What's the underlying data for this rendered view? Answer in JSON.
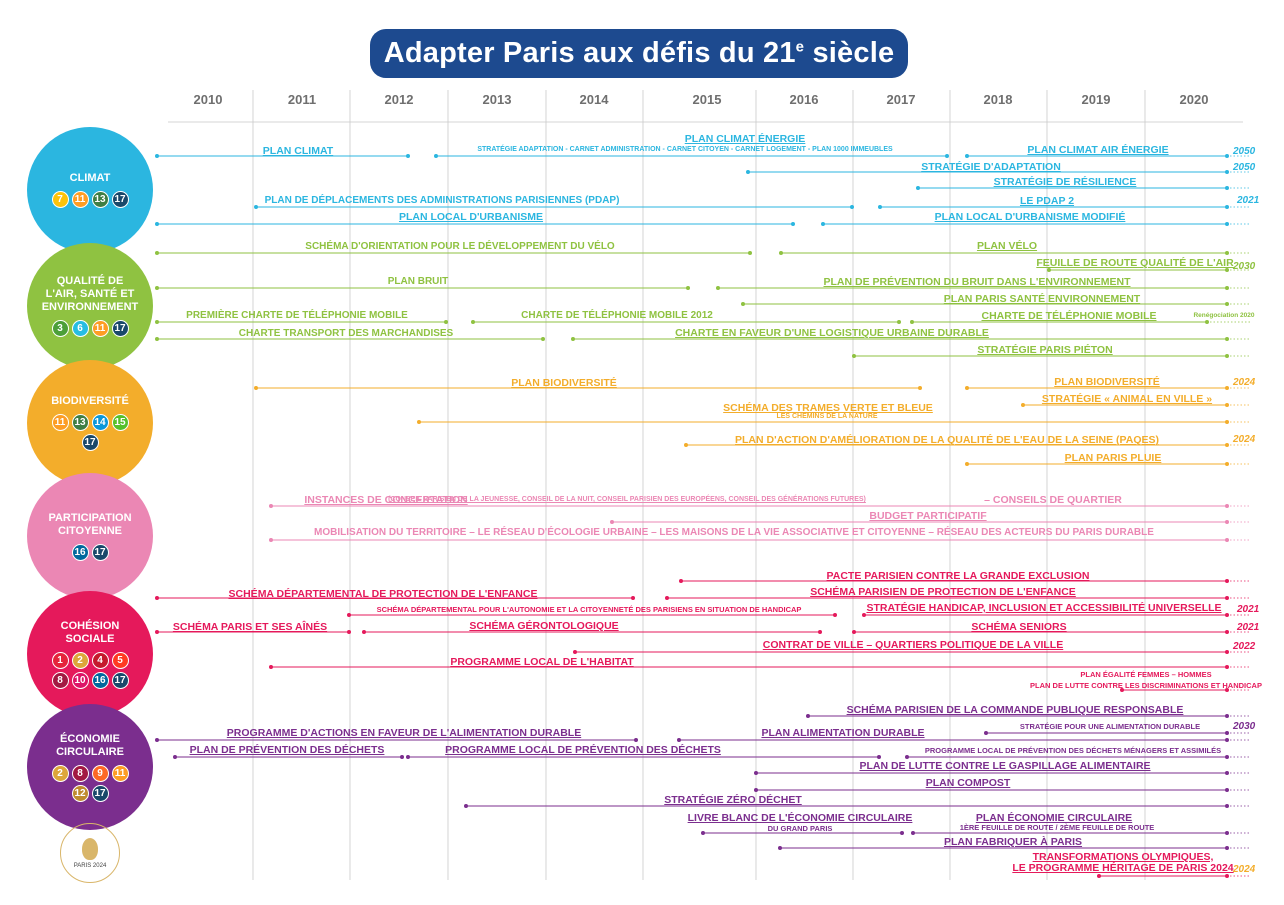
{
  "title": "Adapter Paris aux  défis du 21ᵉ siècle",
  "years": [
    "2010",
    "2011",
    "2012",
    "2013",
    "2014",
    "2015",
    "2016",
    "2017",
    "2018",
    "2019",
    "2020"
  ],
  "logo_text": "PARIS 2024",
  "colors": {
    "climat": "#2bb6e0",
    "air": "#8fc241",
    "bio": "#f3ad2b",
    "part": "#eb87b4",
    "coh": "#e5195b",
    "eco": "#7b2e8e",
    "navy": "#1d4a8f"
  },
  "categories": [
    {
      "id": "climat",
      "name": "CLIMAT",
      "badges": [
        "7",
        "11",
        "13",
        "17"
      ]
    },
    {
      "id": "air",
      "name": "QUALITÉ DE L'AIR, SANTÉ ET ENVIRONNEMENT",
      "badges": [
        "3",
        "6",
        "11",
        "17"
      ]
    },
    {
      "id": "bio",
      "name": "BIODIVERSITÉ",
      "badges": [
        "11",
        "13",
        "14",
        "15",
        "17"
      ]
    },
    {
      "id": "part",
      "name": "PARTICIPATION CITOYENNE",
      "badges": [
        "16",
        "17"
      ]
    },
    {
      "id": "coh",
      "name": "COHÉSION SOCIALE",
      "badges": [
        "1",
        "2",
        "4",
        "5",
        "8",
        "10",
        "16",
        "17"
      ]
    },
    {
      "id": "eco",
      "name": "ÉCONOMIE CIRCULAIRE",
      "badges": [
        "2",
        "8",
        "9",
        "11",
        "12",
        "17"
      ]
    }
  ],
  "labels": [
    {
      "text": "PLAN CLIMAT ÉNERGIE",
      "c": "climat"
    },
    {
      "text": "PLAN CLIMAT",
      "c": "climat"
    },
    {
      "text": "STRATÉGIE ADAPTATION - CARNET ADMINISTRATION  -  CARNET CITOYEN - CARNET LOGEMENT - PLAN 1000 IMMEUBLES",
      "c": "climat"
    },
    {
      "text": "PLAN CLIMAT AIR ÉNERGIE",
      "c": "climat"
    },
    {
      "text": "STRATÉGIE D'ADAPTATION",
      "c": "climat"
    },
    {
      "text": "STRATÉGIE DE RÉSILIENCE",
      "c": "climat"
    },
    {
      "text": "PLAN DE DÉPLACEMENTS DES ADMINISTRATIONS PARISIENNES (PDAP)",
      "c": "climat"
    },
    {
      "text": "LE PDAP 2",
      "c": "climat"
    },
    {
      "text": "PLAN LOCAL D'URBANISME",
      "c": "climat"
    },
    {
      "text": "PLAN LOCAL D'URBANISME MODIFIÉ",
      "c": "climat"
    },
    {
      "text": "SCHÉMA D'ORIENTATION POUR LE DÉVELOPPEMENT DU VÉLO",
      "c": "air"
    },
    {
      "text": "PLAN VÉLO",
      "c": "air"
    },
    {
      "text": "FEUILLE DE ROUTE QUALITÉ DE L'AIR",
      "c": "air"
    },
    {
      "text": "PLAN BRUIT",
      "c": "air"
    },
    {
      "text": "PLAN DE PRÉVENTION DU BRUIT DANS L'ENVIRONNEMENT",
      "c": "air"
    },
    {
      "text": "PLAN PARIS SANTÉ ENVIRONNEMENT",
      "c": "air"
    },
    {
      "text": "PREMIÈRE CHARTE DE TÉLÉPHONIE MOBILE",
      "c": "air"
    },
    {
      "text": "CHARTE DE TÉLÉPHONIE  MOBILE 2012",
      "c": "air"
    },
    {
      "text": "CHARTE DE TÉLÉPHONIE MOBILE",
      "c": "air"
    },
    {
      "text": "Renégociation 2020",
      "c": "air"
    },
    {
      "text": "CHARTE TRANSPORT DES MARCHANDISES",
      "c": "air"
    },
    {
      "text": "CHARTE EN FAVEUR D'UNE LOGISTIQUE URBAINE DURABLE",
      "c": "air"
    },
    {
      "text": "STRATÉGIE PARIS PIÉTON",
      "c": "air"
    },
    {
      "text": "PLAN BIODIVERSITÉ",
      "c": "bio"
    },
    {
      "text": "PLAN BIODIVERSITÉ",
      "c": "bio"
    },
    {
      "text": "STRATÉGIE « ANIMAL EN VILLE »",
      "c": "bio"
    },
    {
      "text": "SCHÉMA DES TRAMES VERTE ET BLEUE",
      "c": "bio"
    },
    {
      "text": "LES CHEMINS DE LA NATURE",
      "c": "bio"
    },
    {
      "text": "PLAN D'ACTION D'AMÉLIORATION DE LA QUALITÉ DE L'EAU DE LA SEINE (PAQES)",
      "c": "bio"
    },
    {
      "text": "PLAN PARIS PLUIE",
      "c": "bio"
    },
    {
      "text": "INSTANCES DE CONCERTATION",
      "c": "part"
    },
    {
      "text": "(CONSEIL PARISIEN DE LA JEUNESSE, CONSEIL DE LA NUIT, CONSEIL PARISIEN DES EUROPÉENS, CONSEIL DES GÉNÉRATIONS FUTURES)",
      "c": "part"
    },
    {
      "text": " – CONSEILS DE QUARTIER",
      "c": "part"
    },
    {
      "text": "BUDGET PARTICIPATIF",
      "c": "part"
    },
    {
      "text": "MOBILISATION DU TERRITOIRE – LE RÉSEAU D'ÉCOLOGIE URBAINE – LES MAISONS DE LA VIE ASSOCIATIVE ET CITOYENNE – RÉSEAU DES ACTEURS DU PARIS DURABLE",
      "c": "part"
    },
    {
      "text": "PACTE PARISIEN CONTRE LA GRANDE EXCLUSION",
      "c": "coh"
    },
    {
      "text": "SCHÉMA DÉPARTEMENTAL DE PROTECTION DE L'ENFANCE",
      "c": "coh"
    },
    {
      "text": "SCHÉMA PARISIEN DE PROTECTION DE L'ENFANCE",
      "c": "coh"
    },
    {
      "text": "SCHÉMA DÉPARTEMENTAL POUR L'AUTONOMIE ET LA CITOYENNETÉ  DES PARISIENS EN SITUATION DE HANDICAP",
      "c": "coh"
    },
    {
      "text": "STRATÉGIE HANDICAP, INCLUSION ET ACCESSIBILITÉ UNIVERSELLE",
      "c": "coh"
    },
    {
      "text": "SCHÉMA PARIS ET SES AÎNÉS",
      "c": "coh"
    },
    {
      "text": "SCHÉMA GÉRONTOLOGIQUE",
      "c": "coh"
    },
    {
      "text": "SCHÉMA SENIORS",
      "c": "coh"
    },
    {
      "text": "CONTRAT DE VILLE – QUARTIERS POLITIQUE DE LA VILLE",
      "c": "coh"
    },
    {
      "text": "PROGRAMME LOCAL DE L'HABITAT",
      "c": "coh"
    },
    {
      "text": "PLAN ÉGALITÉ FEMMES – HOMMES",
      "c": "coh"
    },
    {
      "text": "PLAN DE LUTTE CONTRE LES DISCRIMINATIONS ET HANDICAP",
      "c": "coh"
    },
    {
      "text": "SCHÉMA PARISIEN DE LA COMMANDE PUBLIQUE RESPONSABLE",
      "c": "eco"
    },
    {
      "text": "STRATÉGIE POUR UNE ALIMENTATION DURABLE",
      "c": "eco"
    },
    {
      "text": "PROGRAMME D'ACTIONS EN FAVEUR DE L'ALIMENTATION DURABLE",
      "c": "eco"
    },
    {
      "text": "PLAN ALIMENTATION DURABLE",
      "c": "eco"
    },
    {
      "text": "PLAN DE PRÉVENTION DES DÉCHETS",
      "c": "eco"
    },
    {
      "text": "PROGRAMME LOCAL DE PRÉVENTION  DES DÉCHETS",
      "c": "eco"
    },
    {
      "text": "PROGRAMME LOCAL DE PRÉVENTION DES DÉCHETS MÉNAGERS ET ASSIMILÉS",
      "c": "eco"
    },
    {
      "text": "PLAN DE LUTTE CONTRE LE GASPILLAGE ALIMENTAIRE",
      "c": "eco"
    },
    {
      "text": "PLAN COMPOST",
      "c": "eco"
    },
    {
      "text": "STRATÉGIE ZÉRO DÉCHET",
      "c": "eco"
    },
    {
      "text": "LIVRE BLANC DE L'ÉCONOMIE CIRCULAIRE",
      "c": "eco"
    },
    {
      "text": "DU GRAND PARIS",
      "c": "eco"
    },
    {
      "text": "PLAN ÉCONOMIE CIRCULAIRE",
      "c": "eco"
    },
    {
      "text": "1ÈRE FEUILLE DE ROUTE / 2ÈME FEUILLE DE ROUTE",
      "c": "eco"
    },
    {
      "text": "PLAN FABRIQUER À PARIS",
      "c": "eco"
    },
    {
      "text": "TRANSFORMATIONS OLYMPIQUES,",
      "c": "coh"
    },
    {
      "text": "LE PROGRAMME HÉRITAGE DE PARIS 2024",
      "c": "coh"
    }
  ],
  "end_years": [
    {
      "text": "2050",
      "c": "climat"
    },
    {
      "text": "2050",
      "c": "climat"
    },
    {
      "text": "2021",
      "c": "climat"
    },
    {
      "text": "2030",
      "c": "air"
    },
    {
      "text": "2024",
      "c": "bio"
    },
    {
      "text": "2024",
      "c": "bio"
    },
    {
      "text": "2021",
      "c": "coh"
    },
    {
      "text": "2021",
      "c": "coh"
    },
    {
      "text": "2022",
      "c": "coh"
    },
    {
      "text": "2030",
      "c": "eco"
    },
    {
      "text": "2024",
      "c": "bio"
    }
  ]
}
